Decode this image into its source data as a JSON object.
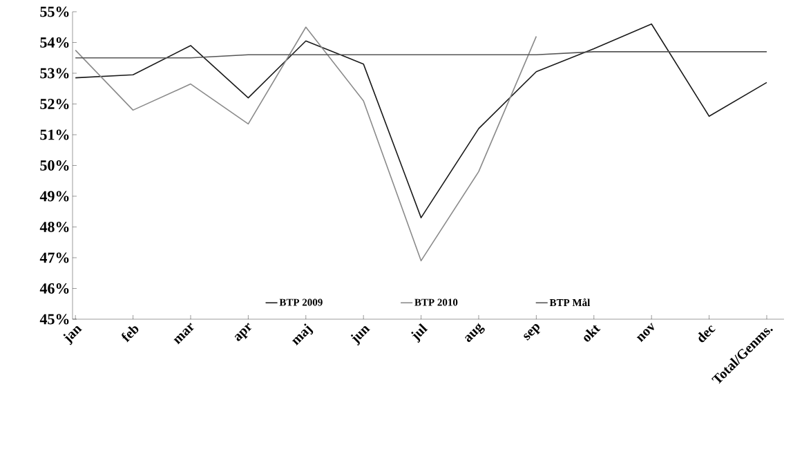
{
  "chart_data": {
    "type": "line",
    "categories": [
      "jan",
      "feb",
      "mar",
      "apr",
      "maj",
      "jun",
      "jul",
      "aug",
      "sep",
      "okt",
      "nov",
      "dec",
      "Total/Genms."
    ],
    "series": [
      {
        "name": "BTP 2009",
        "color": "#1a1a1a",
        "values": [
          52.85,
          52.95,
          53.9,
          52.2,
          54.05,
          53.3,
          48.3,
          51.2,
          53.05,
          53.8,
          54.6,
          51.6,
          52.7
        ]
      },
      {
        "name": "BTP 2010",
        "color": "#8a8a8a",
        "values": [
          53.75,
          51.8,
          52.65,
          51.35,
          54.5,
          52.1,
          46.9,
          49.8,
          54.2,
          null,
          null,
          null,
          null
        ]
      },
      {
        "name": "BTP Mål",
        "color": "#555555",
        "values": [
          53.5,
          53.5,
          53.5,
          53.6,
          53.6,
          53.6,
          53.6,
          53.6,
          53.6,
          53.7,
          53.7,
          53.7,
          53.7
        ]
      }
    ],
    "ylim": [
      45,
      55
    ],
    "yticks": [
      {
        "value": 45,
        "label": "45%"
      },
      {
        "value": 46,
        "label": "46%"
      },
      {
        "value": 47,
        "label": "47%"
      },
      {
        "value": 48,
        "label": "48%"
      },
      {
        "value": 49,
        "label": "49%"
      },
      {
        "value": 50,
        "label": "50%"
      },
      {
        "value": 51,
        "label": "51%"
      },
      {
        "value": 52,
        "label": "52%"
      },
      {
        "value": 53,
        "label": "53%"
      },
      {
        "value": 54,
        "label": "54%"
      },
      {
        "value": 55,
        "label": "55%"
      }
    ],
    "grid": false,
    "legend": "bottom",
    "marker": "none",
    "line_style": "solid"
  }
}
